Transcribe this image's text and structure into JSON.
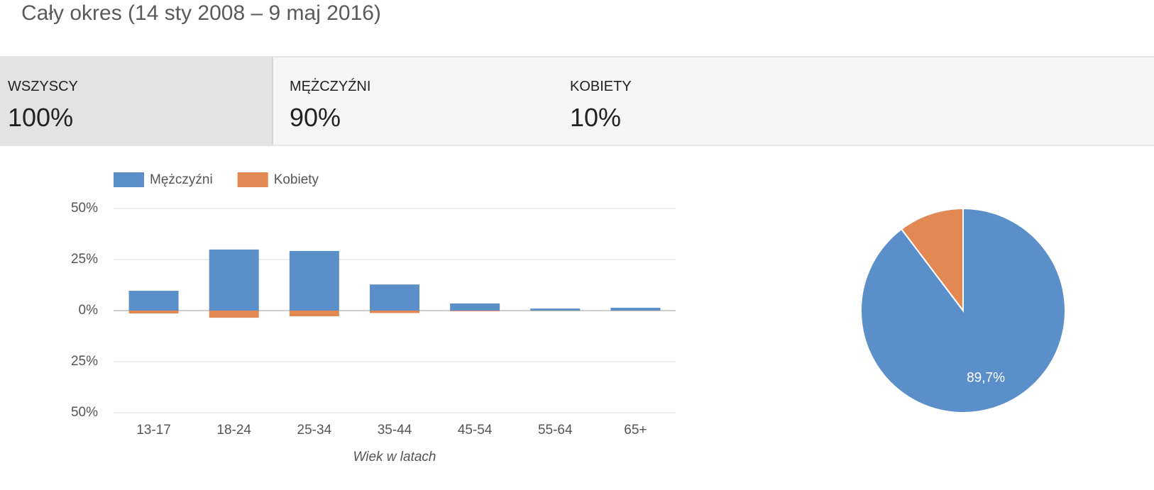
{
  "header": {
    "title": "Cały okres (14 sty 2008 – 9 maj 2016)"
  },
  "tabs": [
    {
      "label": "WSZYSCY",
      "value": "100%"
    },
    {
      "label": "MĘŻCZYŹNI",
      "value": "90%"
    },
    {
      "label": "KOBIETY",
      "value": "10%"
    }
  ],
  "chart_data": [
    {
      "type": "bar",
      "x_label": "Wiek w latach",
      "categories": [
        "13-17",
        "18-24",
        "25-34",
        "35-44",
        "45-54",
        "55-64",
        "65+"
      ],
      "series": [
        {
          "name": "Mężczyźni",
          "color": "#5b8fc9",
          "values": [
            9.7,
            29.9,
            29.2,
            12.8,
            3.5,
            1.0,
            1.4
          ]
        },
        {
          "name": "Kobiety",
          "color": "#e28853",
          "values": [
            -1.4,
            -3.5,
            -2.8,
            -1.2,
            -0.3,
            -0.1,
            -0.1
          ]
        }
      ],
      "ylim": [
        -50,
        50
      ],
      "yticks": [
        {
          "value": 50,
          "label": "50%"
        },
        {
          "value": 25,
          "label": "25%"
        },
        {
          "value": 0,
          "label": "0%"
        },
        {
          "value": -25,
          "label": "25%"
        },
        {
          "value": -50,
          "label": "50%"
        }
      ],
      "grid": true
    },
    {
      "type": "pie",
      "values": [
        89.7,
        10.3
      ],
      "value_labels": [
        "89,7%",
        null
      ],
      "colors": [
        "#5b8fc9",
        "#e28853"
      ]
    }
  ]
}
